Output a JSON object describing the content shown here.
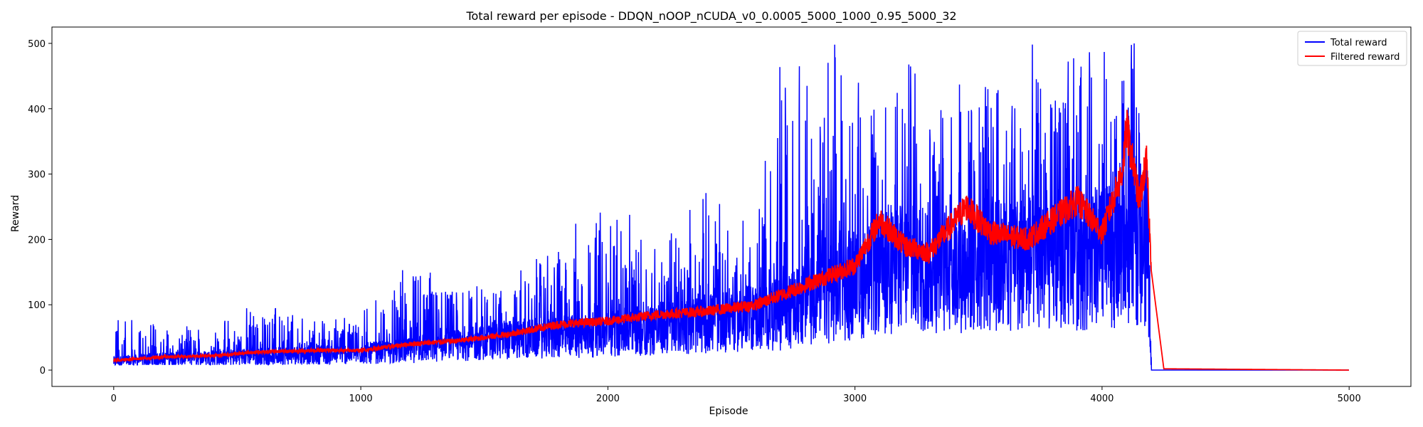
{
  "chart_data": {
    "type": "line",
    "title": "Total reward per episode - DDQN_nOOP_nCUDA_v0_0.0005_5000_1000_0.95_5000_32",
    "xlabel": "Episode",
    "ylabel": "Reward",
    "xlim": [
      -250,
      5250
    ],
    "ylim": [
      -25,
      525
    ],
    "xticks": [
      0,
      1000,
      2000,
      3000,
      4000,
      5000
    ],
    "yticks": [
      0,
      100,
      200,
      300,
      400,
      500
    ],
    "grid": false,
    "legend_position": "top-right",
    "n_episodes": 5000,
    "series": [
      {
        "name": "Total reward",
        "color": "#0000ff",
        "envelope": {
          "episodes": [
            0,
            200,
            400,
            600,
            800,
            1000,
            1200,
            1400,
            1600,
            1800,
            2000,
            2200,
            2400,
            2600,
            2700,
            2800,
            3000,
            3200,
            3400,
            3600,
            3800,
            4000,
            4150,
            4180,
            4200,
            5000
          ],
          "mean": [
            15,
            20,
            22,
            25,
            28,
            30,
            35,
            45,
            55,
            60,
            65,
            75,
            85,
            95,
            100,
            120,
            150,
            190,
            180,
            190,
            200,
            200,
            220,
            220,
            0,
            0
          ],
          "max": [
            90,
            70,
            65,
            110,
            75,
            90,
            165,
            150,
            145,
            205,
            270,
            205,
            275,
            240,
            500,
            500,
            500,
            500,
            500,
            500,
            500,
            500,
            500,
            500,
            0,
            0
          ]
        }
      },
      {
        "name": "Filtered reward",
        "color": "#ff0000",
        "envelope": {
          "episodes": [
            0,
            200,
            400,
            600,
            800,
            1000,
            1200,
            1400,
            1600,
            1800,
            2000,
            2200,
            2400,
            2600,
            2800,
            3000,
            3100,
            3200,
            3300,
            3450,
            3550,
            3700,
            3900,
            4000,
            4080,
            4100,
            4150,
            4180,
            4200,
            4250,
            5000
          ],
          "mean": [
            15,
            20,
            22,
            28,
            30,
            30,
            40,
            45,
            55,
            70,
            75,
            85,
            90,
            100,
            130,
            160,
            230,
            190,
            180,
            250,
            210,
            200,
            260,
            210,
            300,
            370,
            260,
            320,
            150,
            2,
            0
          ]
        }
      }
    ]
  }
}
